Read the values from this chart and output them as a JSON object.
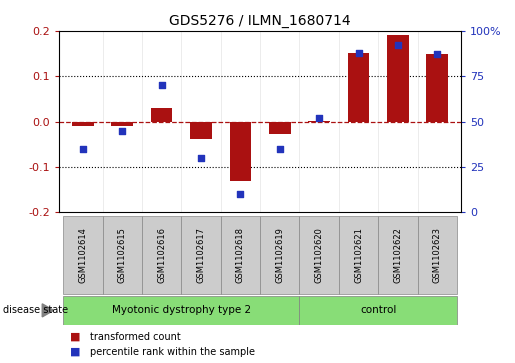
{
  "title": "GDS5276 / ILMN_1680714",
  "samples": [
    "GSM1102614",
    "GSM1102615",
    "GSM1102616",
    "GSM1102617",
    "GSM1102618",
    "GSM1102619",
    "GSM1102620",
    "GSM1102621",
    "GSM1102622",
    "GSM1102623"
  ],
  "red_values": [
    -0.01,
    -0.01,
    0.03,
    -0.038,
    -0.13,
    -0.028,
    0.002,
    0.152,
    0.19,
    0.15
  ],
  "blue_values": [
    35,
    45,
    70,
    30,
    10,
    35,
    52,
    88,
    92,
    87
  ],
  "groups": [
    {
      "label": "Myotonic dystrophy type 2",
      "start": 0,
      "end": 5
    },
    {
      "label": "control",
      "start": 6,
      "end": 9
    }
  ],
  "ylim_left": [
    -0.2,
    0.2
  ],
  "ylim_right": [
    0,
    100
  ],
  "yticks_left": [
    -0.2,
    -0.1,
    0.0,
    0.1,
    0.2
  ],
  "yticks_right": [
    0,
    25,
    50,
    75,
    100
  ],
  "ytick_labels_right": [
    "0",
    "25",
    "50",
    "75",
    "100%"
  ],
  "red_color": "#AA1111",
  "blue_color": "#2233BB",
  "bar_width": 0.55,
  "sample_box_color": "#CCCCCC",
  "disease_band_color": "#88DD77",
  "legend_items": [
    {
      "color": "#AA1111",
      "label": "transformed count"
    },
    {
      "color": "#2233BB",
      "label": "percentile rank within the sample"
    }
  ]
}
